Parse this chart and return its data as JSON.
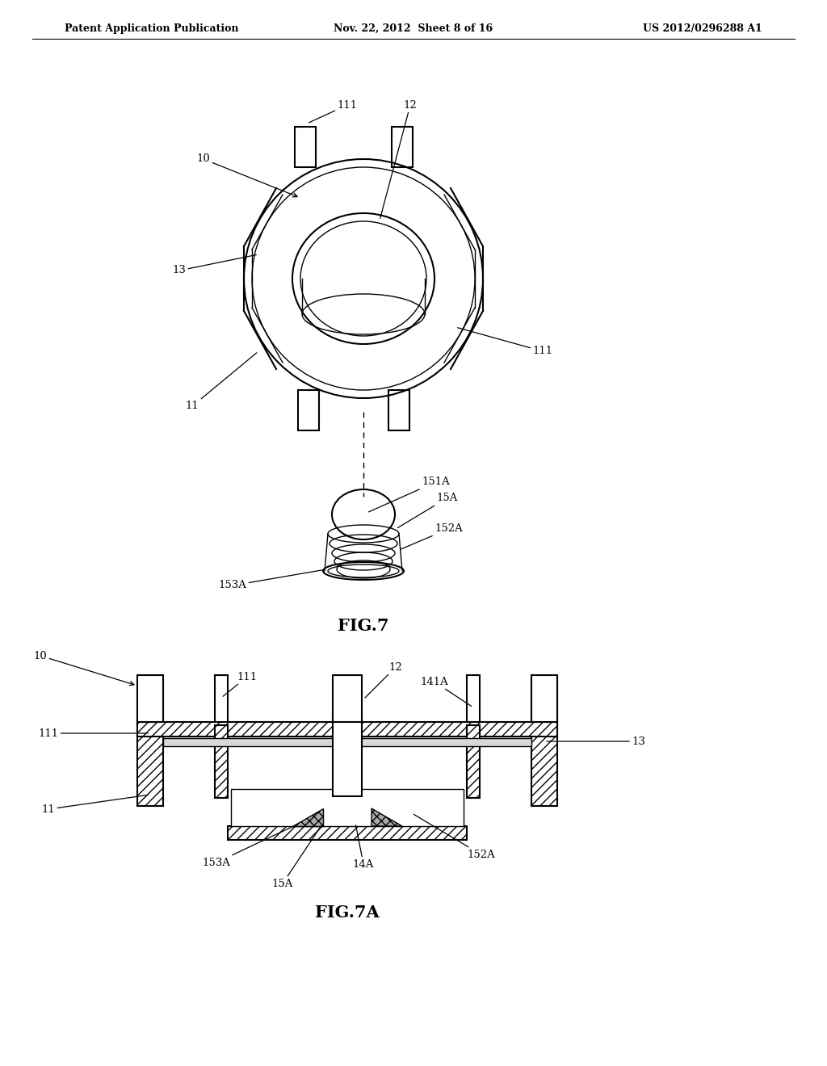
{
  "bg_color": "#ffffff",
  "line_color": "#000000",
  "header_left": "Patent Application Publication",
  "header_mid": "Nov. 22, 2012  Sheet 8 of 16",
  "header_right": "US 2012/0296288 A1",
  "fig7_label": "FIG.7",
  "fig7a_label": "FIG.7A"
}
